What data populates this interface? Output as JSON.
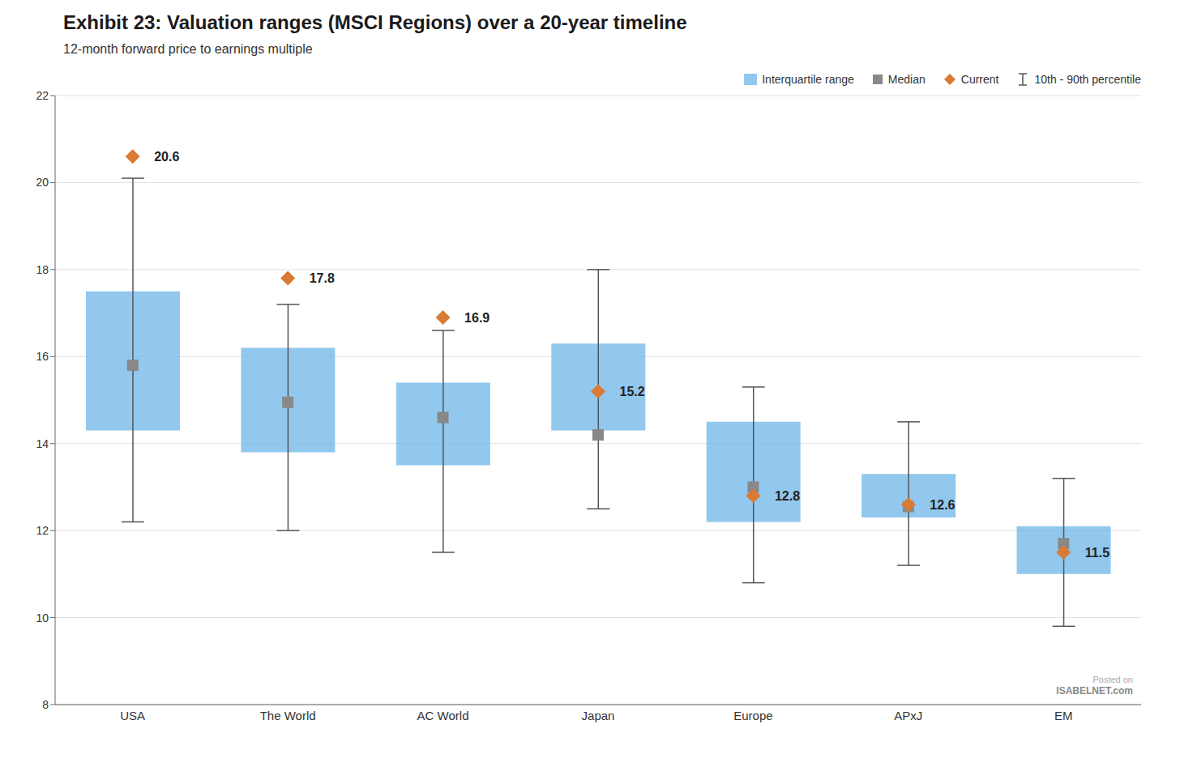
{
  "chart_data": {
    "type": "box",
    "title": "Exhibit 23: Valuation ranges (MSCI Regions) over a 20-year timeline",
    "subtitle": "12-month forward price to earnings multiple",
    "categories": [
      "USA",
      "The World",
      "AC World",
      "Japan",
      "Europe",
      "APxJ",
      "EM"
    ],
    "series": [
      {
        "name": "Interquartile range",
        "type": "range",
        "color": "#6DB6E8",
        "low": [
          14.3,
          13.8,
          13.5,
          14.3,
          12.2,
          12.3,
          11.0
        ],
        "high": [
          17.5,
          16.2,
          15.4,
          16.3,
          14.5,
          13.3,
          12.1
        ]
      },
      {
        "name": "Median",
        "type": "scatter",
        "marker": "square",
        "color": "#888888",
        "values": [
          15.8,
          14.95,
          14.6,
          14.2,
          13.0,
          12.55,
          11.7
        ]
      },
      {
        "name": "Current",
        "type": "scatter",
        "marker": "diamond",
        "color": "#D97B35",
        "values": [
          20.6,
          17.8,
          16.9,
          15.2,
          12.8,
          12.6,
          11.5
        ],
        "data_labels": true
      },
      {
        "name": "10th - 90th percentile",
        "type": "errorbar",
        "color": "#555555",
        "low": [
          12.2,
          12.0,
          11.5,
          12.5,
          10.8,
          11.2,
          9.8
        ],
        "high": [
          20.1,
          17.2,
          16.6,
          18.0,
          15.3,
          14.5,
          13.2
        ]
      }
    ],
    "ylim": [
      8,
      22
    ],
    "yticks": [
      8,
      10,
      12,
      14,
      16,
      18,
      20,
      22
    ],
    "grid": true,
    "legend": "top right",
    "annotations": [
      "Posted on",
      "ISABELNET.com"
    ]
  }
}
